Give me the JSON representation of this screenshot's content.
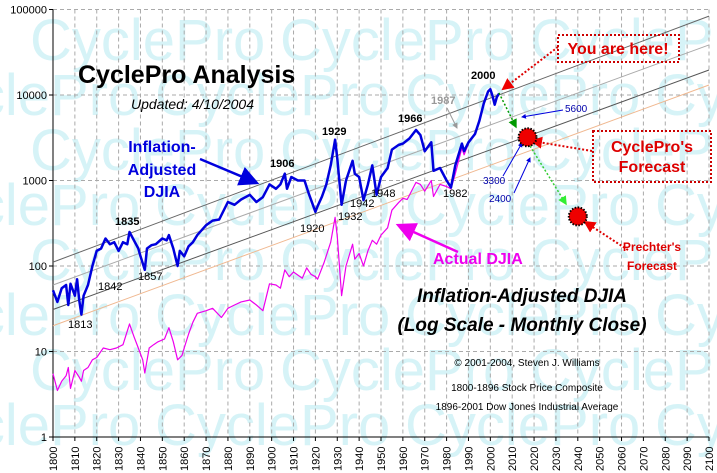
{
  "watermark": "CyclePro",
  "title": "CyclePro Analysis",
  "updated": "Updated: 4/10/2004",
  "labels": {
    "inflation_adjusted": [
      "Inflation-",
      "Adjusted",
      "DJIA"
    ],
    "actual": "Actual DJIA",
    "subtitle": [
      "Inflation-Adjusted DJIA",
      "(Log Scale - Monthly Close)"
    ],
    "copyright": "© 2001-2004, Steven J. Williams",
    "sources": [
      "1800-1896 Stock Price Composite",
      "1896-2001 Dow Jones Industrial Average"
    ],
    "you_are_here": "You are here!",
    "cyclepro_forecast": [
      "CyclePro's",
      "Forecast"
    ],
    "prechter_forecast": [
      "Prechter's",
      "Forecast"
    ],
    "forecast_values": {
      "v5600": "5600",
      "v3300": "3300",
      "v2400": "2400"
    },
    "peaks": {
      "y1835": "1835",
      "y1906": "1906",
      "y1929": "1929",
      "y1966": "1966",
      "y2000": "2000",
      "y1987": "1987"
    },
    "troughs": {
      "y1813": "1813",
      "y1842": "1842",
      "y1857": "1857",
      "y1920": "1920",
      "y1932": "1932",
      "y1942": "1942",
      "y1948": "1948",
      "y1982": "1982"
    }
  },
  "colors": {
    "inflation_adjusted": "#0000dd",
    "actual": "#ee00ee",
    "annotation": "#dd0000",
    "forecast_arrow": "#00bb00",
    "watermark": "#d6f3f7"
  },
  "chart_data": {
    "type": "line",
    "yscale": "log",
    "xlim": [
      1800,
      2100
    ],
    "ylim": [
      1,
      100000
    ],
    "grid": true,
    "xticks": [
      1800,
      1810,
      1820,
      1830,
      1840,
      1850,
      1860,
      1870,
      1880,
      1890,
      1900,
      1910,
      1920,
      1930,
      1940,
      1950,
      1960,
      1970,
      1980,
      1990,
      2000,
      2010,
      2020,
      2030,
      2040,
      2050,
      2060,
      2070,
      2080,
      2090,
      2100
    ],
    "yticks": [
      "1",
      "10",
      "100",
      "1000",
      "10000",
      "100000"
    ],
    "series": [
      {
        "name": "Inflation-Adjusted DJIA",
        "points": [
          [
            1800,
            52
          ],
          [
            1802,
            38
          ],
          [
            1804,
            55
          ],
          [
            1806,
            60
          ],
          [
            1807,
            35
          ],
          [
            1808,
            62
          ],
          [
            1810,
            45
          ],
          [
            1811,
            70
          ],
          [
            1812,
            40
          ],
          [
            1813,
            27
          ],
          [
            1814,
            45
          ],
          [
            1816,
            60
          ],
          [
            1818,
            100
          ],
          [
            1820,
            150
          ],
          [
            1822,
            160
          ],
          [
            1824,
            210
          ],
          [
            1826,
            180
          ],
          [
            1828,
            190
          ],
          [
            1830,
            150
          ],
          [
            1832,
            190
          ],
          [
            1834,
            180
          ],
          [
            1835,
            250
          ],
          [
            1837,
            200
          ],
          [
            1839,
            160
          ],
          [
            1840,
            130
          ],
          [
            1842,
            90
          ],
          [
            1843,
            160
          ],
          [
            1845,
            175
          ],
          [
            1847,
            180
          ],
          [
            1850,
            210
          ],
          [
            1852,
            200
          ],
          [
            1853,
            230
          ],
          [
            1855,
            160
          ],
          [
            1857,
            100
          ],
          [
            1858,
            150
          ],
          [
            1860,
            130
          ],
          [
            1862,
            170
          ],
          [
            1864,
            190
          ],
          [
            1866,
            230
          ],
          [
            1870,
            300
          ],
          [
            1873,
            340
          ],
          [
            1876,
            350
          ],
          [
            1880,
            560
          ],
          [
            1883,
            520
          ],
          [
            1886,
            600
          ],
          [
            1890,
            680
          ],
          [
            1893,
            560
          ],
          [
            1896,
            640
          ],
          [
            1899,
            900
          ],
          [
            1902,
            800
          ],
          [
            1904,
            900
          ],
          [
            1906,
            1200
          ],
          [
            1907,
            800
          ],
          [
            1909,
            1100
          ],
          [
            1912,
            1000
          ],
          [
            1915,
            1000
          ],
          [
            1917,
            700
          ],
          [
            1920,
            430
          ],
          [
            1921,
            500
          ],
          [
            1923,
            650
          ],
          [
            1925,
            900
          ],
          [
            1927,
            1500
          ],
          [
            1929,
            3000
          ],
          [
            1930,
            1800
          ],
          [
            1932,
            520
          ],
          [
            1934,
            1000
          ],
          [
            1937,
            1700
          ],
          [
            1938,
            1200
          ],
          [
            1940,
            1100
          ],
          [
            1942,
            590
          ],
          [
            1944,
            900
          ],
          [
            1946,
            1500
          ],
          [
            1948,
            680
          ],
          [
            1950,
            1100
          ],
          [
            1953,
            1400
          ],
          [
            1955,
            2300
          ],
          [
            1958,
            2600
          ],
          [
            1960,
            2700
          ],
          [
            1963,
            3100
          ],
          [
            1966,
            3900
          ],
          [
            1968,
            3400
          ],
          [
            1970,
            2200
          ],
          [
            1973,
            2800
          ],
          [
            1974,
            1300
          ],
          [
            1977,
            1400
          ],
          [
            1980,
            1000
          ],
          [
            1982,
            830
          ],
          [
            1984,
            1500
          ],
          [
            1987,
            2700
          ],
          [
            1988,
            2200
          ],
          [
            1990,
            2800
          ],
          [
            1993,
            3500
          ],
          [
            1995,
            5000
          ],
          [
            1997,
            8000
          ],
          [
            1999,
            11000
          ],
          [
            2000,
            11700
          ],
          [
            2001,
            9800
          ],
          [
            2002,
            7700
          ],
          [
            2003,
            9500
          ],
          [
            2004,
            10400
          ]
        ]
      },
      {
        "name": "Actual DJIA",
        "points": [
          [
            1800,
            5.5
          ],
          [
            1802,
            3.5
          ],
          [
            1804,
            4.5
          ],
          [
            1806,
            5.2
          ],
          [
            1807,
            6.5
          ],
          [
            1808,
            3.7
          ],
          [
            1810,
            6
          ],
          [
            1812,
            5
          ],
          [
            1813,
            4.5
          ],
          [
            1814,
            6
          ],
          [
            1816,
            6.5
          ],
          [
            1818,
            8
          ],
          [
            1820,
            8.5
          ],
          [
            1823,
            11
          ],
          [
            1826,
            10.5
          ],
          [
            1829,
            11
          ],
          [
            1832,
            12
          ],
          [
            1835,
            21
          ],
          [
            1837,
            15
          ],
          [
            1839,
            11
          ],
          [
            1841,
            8
          ],
          [
            1842,
            5.6
          ],
          [
            1844,
            11
          ],
          [
            1846,
            12
          ],
          [
            1848,
            13
          ],
          [
            1851,
            14
          ],
          [
            1853,
            19
          ],
          [
            1855,
            13
          ],
          [
            1857,
            8
          ],
          [
            1859,
            9
          ],
          [
            1860,
            11
          ],
          [
            1862,
            16
          ],
          [
            1864,
            22
          ],
          [
            1866,
            28
          ],
          [
            1870,
            30
          ],
          [
            1873,
            32
          ],
          [
            1877,
            25
          ],
          [
            1880,
            32
          ],
          [
            1883,
            35
          ],
          [
            1886,
            38
          ],
          [
            1890,
            40
          ],
          [
            1893,
            35
          ],
          [
            1896,
            30
          ],
          [
            1899,
            62
          ],
          [
            1902,
            60
          ],
          [
            1904,
            55
          ],
          [
            1906,
            90
          ],
          [
            1908,
            75
          ],
          [
            1910,
            85
          ],
          [
            1914,
            72
          ],
          [
            1916,
            95
          ],
          [
            1918,
            80
          ],
          [
            1920,
            75
          ],
          [
            1921,
            70
          ],
          [
            1924,
            110
          ],
          [
            1927,
            190
          ],
          [
            1929,
            370
          ],
          [
            1930,
            220
          ],
          [
            1932,
            45
          ],
          [
            1934,
            100
          ],
          [
            1937,
            180
          ],
          [
            1938,
            120
          ],
          [
            1940,
            140
          ],
          [
            1942,
            100
          ],
          [
            1944,
            150
          ],
          [
            1946,
            200
          ],
          [
            1948,
            180
          ],
          [
            1950,
            230
          ],
          [
            1953,
            280
          ],
          [
            1955,
            450
          ],
          [
            1958,
            550
          ],
          [
            1960,
            620
          ],
          [
            1962,
            600
          ],
          [
            1966,
            950
          ],
          [
            1968,
            900
          ],
          [
            1970,
            750
          ],
          [
            1973,
            1000
          ],
          [
            1974,
            650
          ],
          [
            1977,
            900
          ],
          [
            1980,
            850
          ],
          [
            1982,
            800
          ],
          [
            1984,
            1200
          ],
          [
            1987,
            2400
          ],
          [
            1988,
            2000
          ],
          [
            1990,
            2700
          ],
          [
            1993,
            3600
          ],
          [
            1995,
            5000
          ],
          [
            1997,
            8000
          ],
          [
            1999,
            11000
          ],
          [
            2000,
            11500
          ],
          [
            2001,
            10000
          ],
          [
            2002,
            8000
          ],
          [
            2003,
            9500
          ],
          [
            2004,
            10400
          ]
        ]
      }
    ],
    "channel_lines": [
      {
        "from": [
          1800,
          111
        ],
        "to": [
          2100,
          83700
        ]
      },
      {
        "from": [
          1800,
          60
        ],
        "to": [
          2100,
          38500
        ]
      },
      {
        "from": [
          1800,
          31
        ],
        "to": [
          2100,
          19600
        ]
      },
      {
        "from": [
          1800,
          20
        ],
        "to": [
          2100,
          13100
        ]
      }
    ],
    "forecasts": [
      {
        "name": "CyclePro's Forecast",
        "year": 2017,
        "value": 3200
      },
      {
        "name": "Prechter's Forecast",
        "year": 2040,
        "value": 380
      }
    ]
  }
}
